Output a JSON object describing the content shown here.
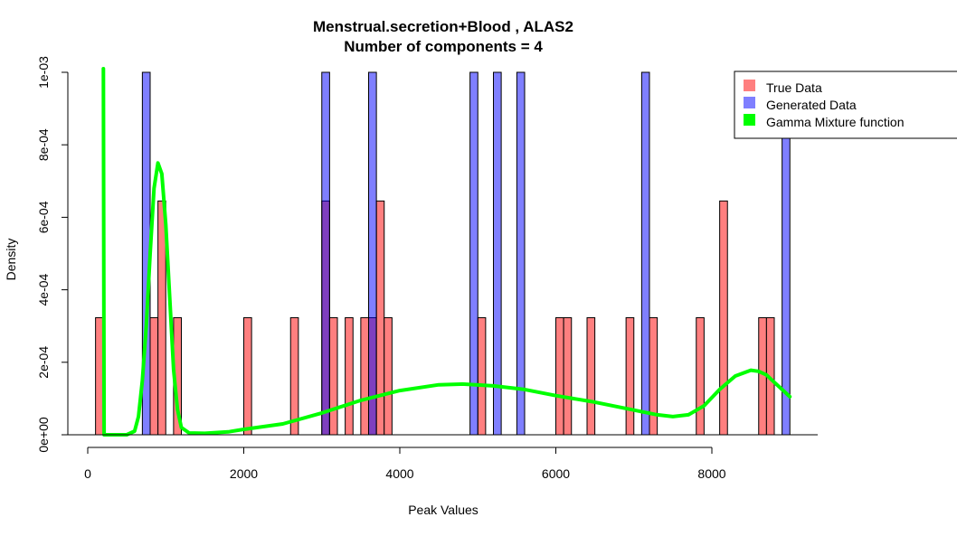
{
  "chart_data": {
    "type": "histogram",
    "title": "Menstrual.secretion+Blood , ALAS2",
    "subtitle": "Number of components =  4",
    "xlabel": "Peak Values",
    "ylabel": "Density",
    "xlim": [
      0,
      9300
    ],
    "ylim": [
      0,
      0.001
    ],
    "x_ticks": [
      0,
      2000,
      4000,
      6000,
      8000
    ],
    "x_tick_labels": [
      "0",
      "2000",
      "4000",
      "6000",
      "8000"
    ],
    "y_ticks": [
      0,
      0.0002,
      0.0004,
      0.0006,
      0.0008,
      0.001
    ],
    "y_tick_labels": [
      "0e+00",
      "2e-04",
      "4e-04",
      "6e-04",
      "8e-04",
      "1e-03"
    ],
    "bin_width": 100,
    "grid": false,
    "legend_position": "top-right",
    "series": [
      {
        "name": "True Data",
        "kind": "bars",
        "color": "#ff7f7f",
        "bins": [
          {
            "x0": 100,
            "x1": 200,
            "y": 0.000323
          },
          {
            "x0": 800,
            "x1": 900,
            "y": 0.000323
          },
          {
            "x0": 900,
            "x1": 1000,
            "y": 0.000645
          },
          {
            "x0": 1100,
            "x1": 1200,
            "y": 0.000323
          },
          {
            "x0": 2000,
            "x1": 2100,
            "y": 0.000323
          },
          {
            "x0": 2600,
            "x1": 2700,
            "y": 0.000323
          },
          {
            "x0": 3000,
            "x1": 3100,
            "y": 0.000645
          },
          {
            "x0": 3100,
            "x1": 3200,
            "y": 0.000323
          },
          {
            "x0": 3300,
            "x1": 3400,
            "y": 0.000323
          },
          {
            "x0": 3500,
            "x1": 3600,
            "y": 0.000323
          },
          {
            "x0": 3600,
            "x1": 3700,
            "y": 0.000323
          },
          {
            "x0": 3700,
            "x1": 3800,
            "y": 0.000645
          },
          {
            "x0": 3800,
            "x1": 3900,
            "y": 0.000323
          },
          {
            "x0": 5000,
            "x1": 5100,
            "y": 0.000323
          },
          {
            "x0": 6000,
            "x1": 6100,
            "y": 0.000323
          },
          {
            "x0": 6100,
            "x1": 6200,
            "y": 0.000323
          },
          {
            "x0": 6400,
            "x1": 6500,
            "y": 0.000323
          },
          {
            "x0": 6900,
            "x1": 7000,
            "y": 0.000323
          },
          {
            "x0": 7200,
            "x1": 7300,
            "y": 0.000323
          },
          {
            "x0": 7800,
            "x1": 7900,
            "y": 0.000323
          },
          {
            "x0": 8100,
            "x1": 8200,
            "y": 0.000645
          },
          {
            "x0": 8600,
            "x1": 8700,
            "y": 0.000323
          },
          {
            "x0": 8700,
            "x1": 8800,
            "y": 0.000323
          }
        ]
      },
      {
        "name": "Generated Data",
        "kind": "bars",
        "color": "#7f7fff",
        "bins": [
          {
            "x0": 700,
            "x1": 800,
            "y": 0.001
          },
          {
            "x0": 3000,
            "x1": 3100,
            "y": 0.001
          },
          {
            "x0": 3600,
            "x1": 3700,
            "y": 0.001
          },
          {
            "x0": 4900,
            "x1": 5000,
            "y": 0.001
          },
          {
            "x0": 5200,
            "x1": 5300,
            "y": 0.001
          },
          {
            "x0": 5500,
            "x1": 5600,
            "y": 0.001
          },
          {
            "x0": 7100,
            "x1": 7200,
            "y": 0.001
          },
          {
            "x0": 8900,
            "x1": 9000,
            "y": 0.001
          }
        ]
      },
      {
        "name": "Gamma Mixture function",
        "kind": "line",
        "color": "#00ff00",
        "points": [
          [
            200,
            0.00101
          ],
          [
            210,
            0.0
          ],
          [
            300,
            0.0
          ],
          [
            400,
            0.0
          ],
          [
            500,
            0.0
          ],
          [
            600,
            1e-05
          ],
          [
            650,
            5e-05
          ],
          [
            700,
            0.00015
          ],
          [
            750,
            0.0003
          ],
          [
            800,
            0.0005
          ],
          [
            850,
            0.00068
          ],
          [
            900,
            0.00075
          ],
          [
            950,
            0.00072
          ],
          [
            1000,
            0.00058
          ],
          [
            1050,
            0.00038
          ],
          [
            1100,
            0.00018
          ],
          [
            1150,
            7e-05
          ],
          [
            1200,
            2e-05
          ],
          [
            1300,
            5e-06
          ],
          [
            1500,
            4e-06
          ],
          [
            1800,
            8e-06
          ],
          [
            2000,
            1.5e-05
          ],
          [
            2500,
            3e-05
          ],
          [
            3000,
            6e-05
          ],
          [
            3500,
            9.5e-05
          ],
          [
            4000,
            0.000122
          ],
          [
            4500,
            0.000138
          ],
          [
            4800,
            0.00014
          ],
          [
            5200,
            0.000135
          ],
          [
            5600,
            0.000125
          ],
          [
            6000,
            0.000108
          ],
          [
            6500,
            9e-05
          ],
          [
            7000,
            6.8e-05
          ],
          [
            7300,
            5.5e-05
          ],
          [
            7500,
            5e-05
          ],
          [
            7700,
            5.5e-05
          ],
          [
            7900,
            8e-05
          ],
          [
            8100,
            0.000125
          ],
          [
            8300,
            0.000162
          ],
          [
            8500,
            0.000178
          ],
          [
            8600,
            0.000175
          ],
          [
            8700,
            0.000165
          ],
          [
            8800,
            0.000145
          ],
          [
            8900,
            0.000125
          ],
          [
            9000,
            0.000105
          ]
        ]
      }
    ]
  }
}
